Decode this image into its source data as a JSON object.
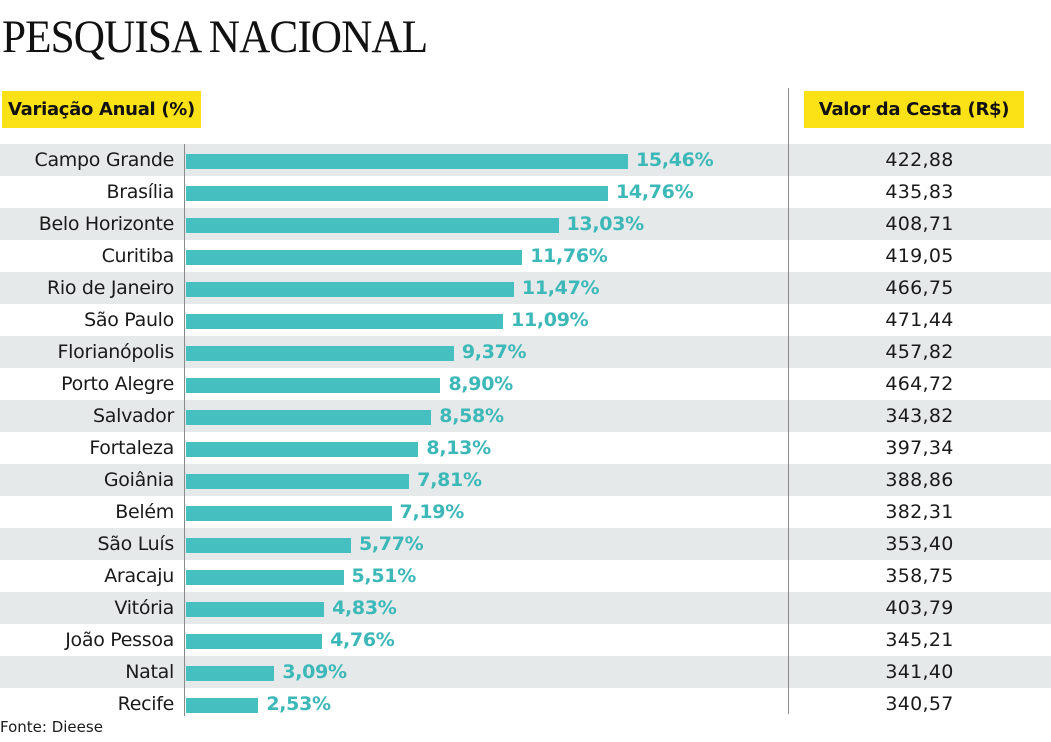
{
  "title": "PESQUISA NACIONAL",
  "source": "Fonte: Dieese",
  "colors": {
    "bar": "#45bfbf",
    "label": "#3cb8b8",
    "header_bg": "#fbe216",
    "row_alt": "#e6e9ea"
  },
  "chart_data": {
    "type": "bar",
    "orientation": "horizontal",
    "title": "PESQUISA NACIONAL",
    "series_label": "Variação Anual (%)",
    "table_column_label": "Valor da Cesta (R$)",
    "categories": [
      "Campo Grande",
      "Brasília",
      "Belo Horizonte",
      "Curitiba",
      "Rio de Janeiro",
      "São Paulo",
      "Florianópolis",
      "Porto Alegre",
      "Salvador",
      "Fortaleza",
      "Goiânia",
      "Belém",
      "São Luís",
      "Aracaju",
      "Vitória",
      "João Pessoa",
      "Natal",
      "Recife"
    ],
    "values": [
      15.46,
      14.76,
      13.03,
      11.76,
      11.47,
      11.09,
      9.37,
      8.9,
      8.58,
      8.13,
      7.81,
      7.19,
      5.77,
      5.51,
      4.83,
      4.76,
      3.09,
      2.53
    ],
    "value_labels": [
      "15,46%",
      "14,76%",
      "13,03%",
      "11,76%",
      "11,47%",
      "11,09%",
      "9,37%",
      "8,90%",
      "8,58%",
      "8,13%",
      "7,81%",
      "7,19%",
      "5,77%",
      "5,51%",
      "4,83%",
      "4,76%",
      "3,09%",
      "2,53%"
    ],
    "basket_values": [
      "422,88",
      "435,83",
      "408,71",
      "419,05",
      "466,75",
      "471,44",
      "457,82",
      "464,72",
      "343,82",
      "397,34",
      "388,86",
      "382,31",
      "353,40",
      "358,75",
      "403,79",
      "345,21",
      "341,40",
      "340,57"
    ],
    "xlim": [
      0,
      15.46
    ],
    "grid": false,
    "legend": "none",
    "source": "Fonte: Dieese"
  }
}
